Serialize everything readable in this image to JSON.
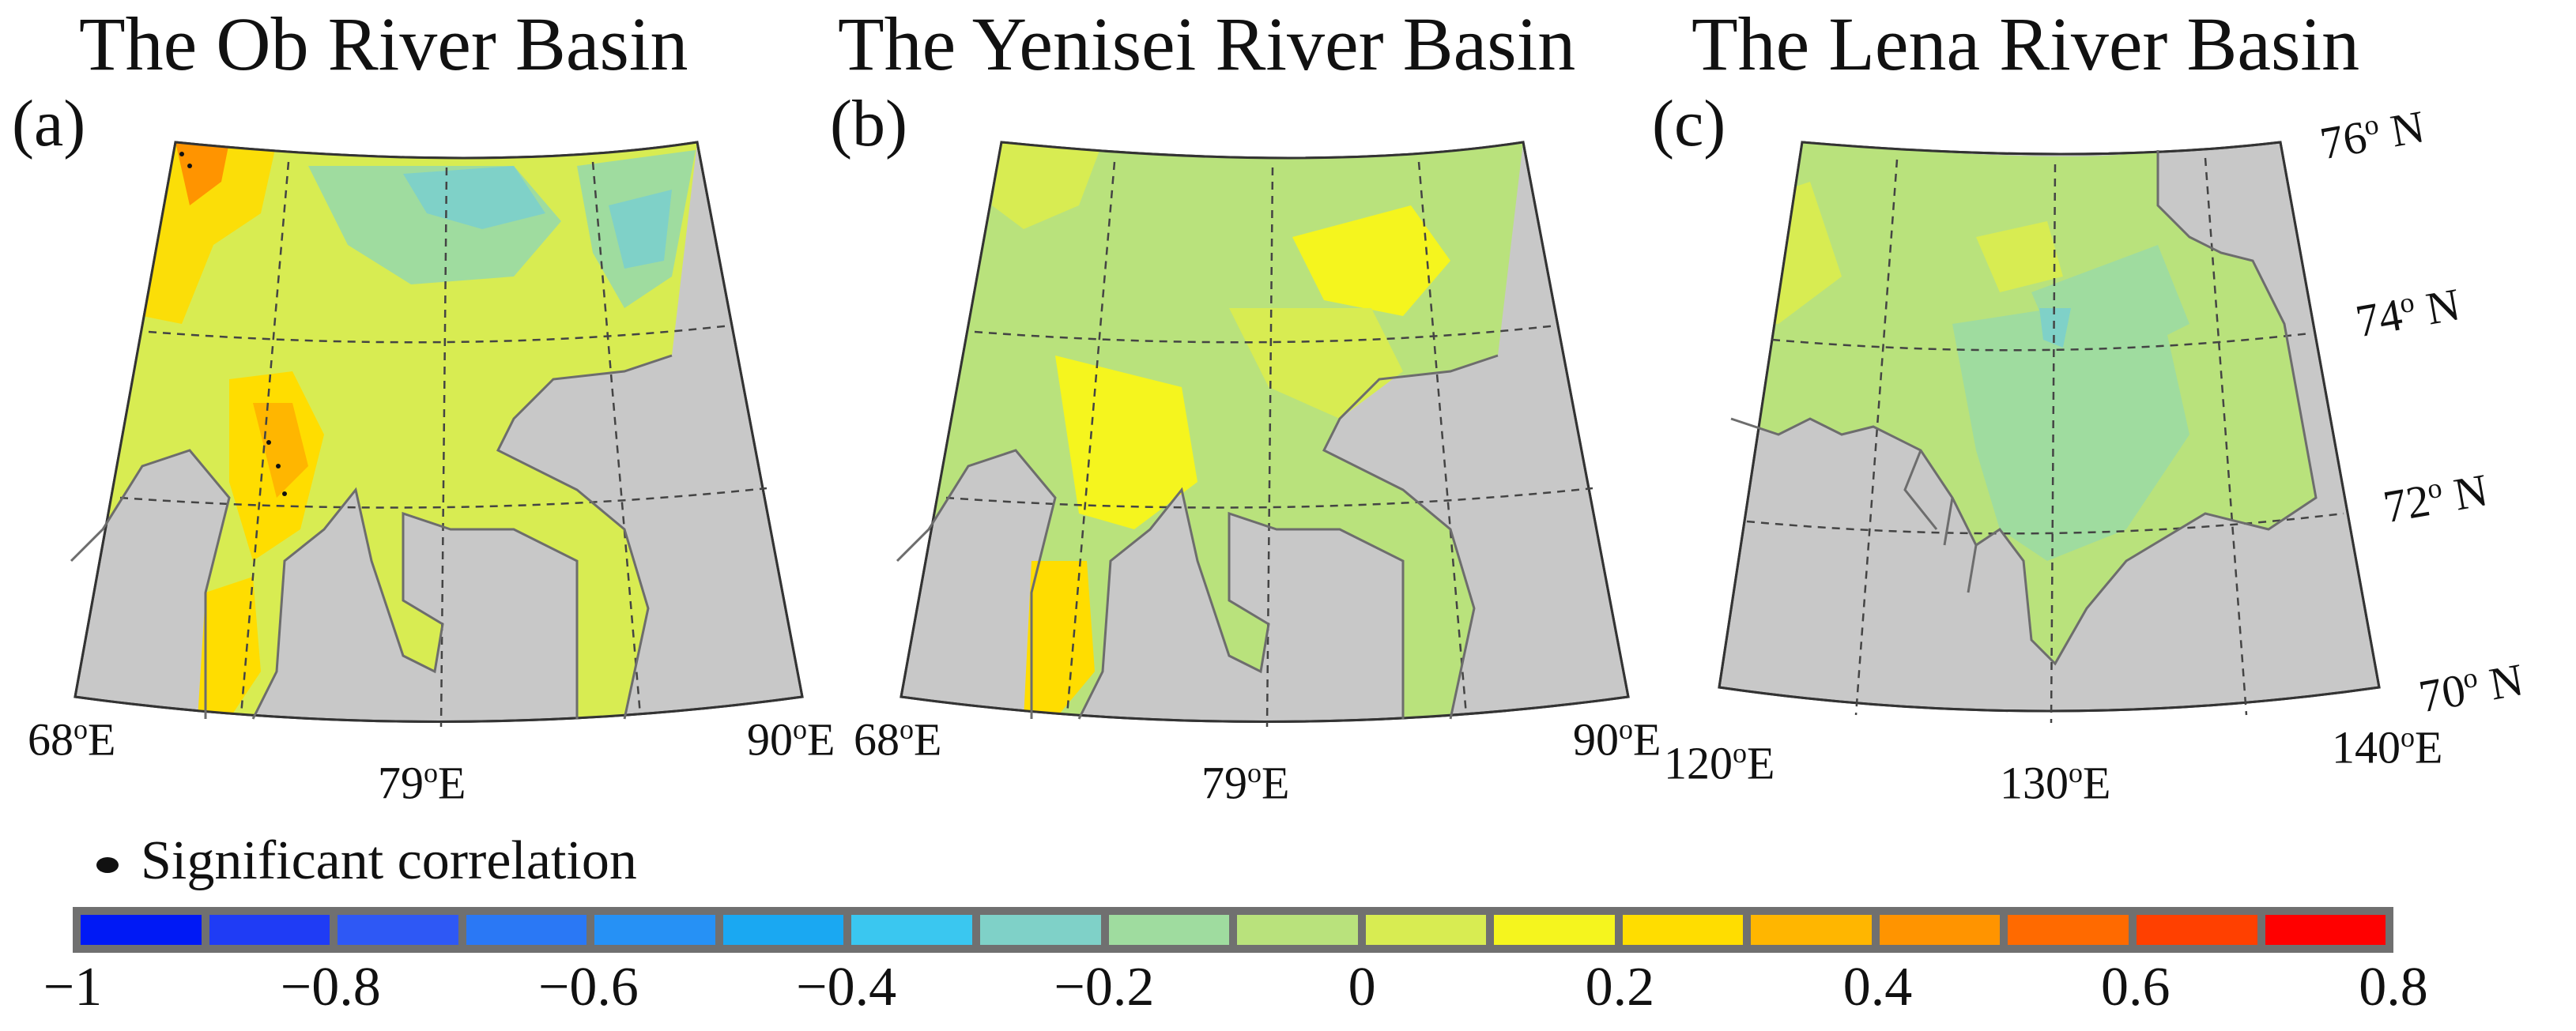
{
  "panels": [
    {
      "title": "The Ob River Basin",
      "label": "(a)",
      "lon_labels": [
        "68",
        "79",
        "90"
      ],
      "lon_unit": "E"
    },
    {
      "title": "The Yenisei River Basin",
      "label": "(b)",
      "lon_labels": [
        "68",
        "79",
        "90"
      ],
      "lon_unit": "E"
    },
    {
      "title": "The Lena River Basin",
      "label": "(c)",
      "lon_labels": [
        "120",
        "130",
        "140"
      ],
      "lon_unit": "E"
    }
  ],
  "lat_labels": [
    "76",
    "74",
    "72",
    "70"
  ],
  "lat_unit": "N",
  "degree_symbol": "o",
  "legend": {
    "marker_label": "Significant correlation"
  },
  "colorbar": {
    "ticks": [
      "−1",
      "−0.8",
      "−0.6",
      "−0.4",
      "−0.2",
      "0",
      "0.2",
      "0.4",
      "0.6",
      "0.8"
    ],
    "colors": [
      "#0019f5",
      "#1f3cf5",
      "#2e58f5",
      "#2a78f5",
      "#2691f5",
      "#1aa8f2",
      "#3ac7f0",
      "#7fd1c8",
      "#9fdc9f",
      "#b9e27c",
      "#d8ec52",
      "#f5f51e",
      "#ffdd00",
      "#ffb600",
      "#ff9400",
      "#ff6a00",
      "#ff4000",
      "#ff0000"
    ]
  },
  "colors": {
    "land": "#c8c8c8",
    "coast": "#6d6d6d",
    "grid": "#444444"
  }
}
